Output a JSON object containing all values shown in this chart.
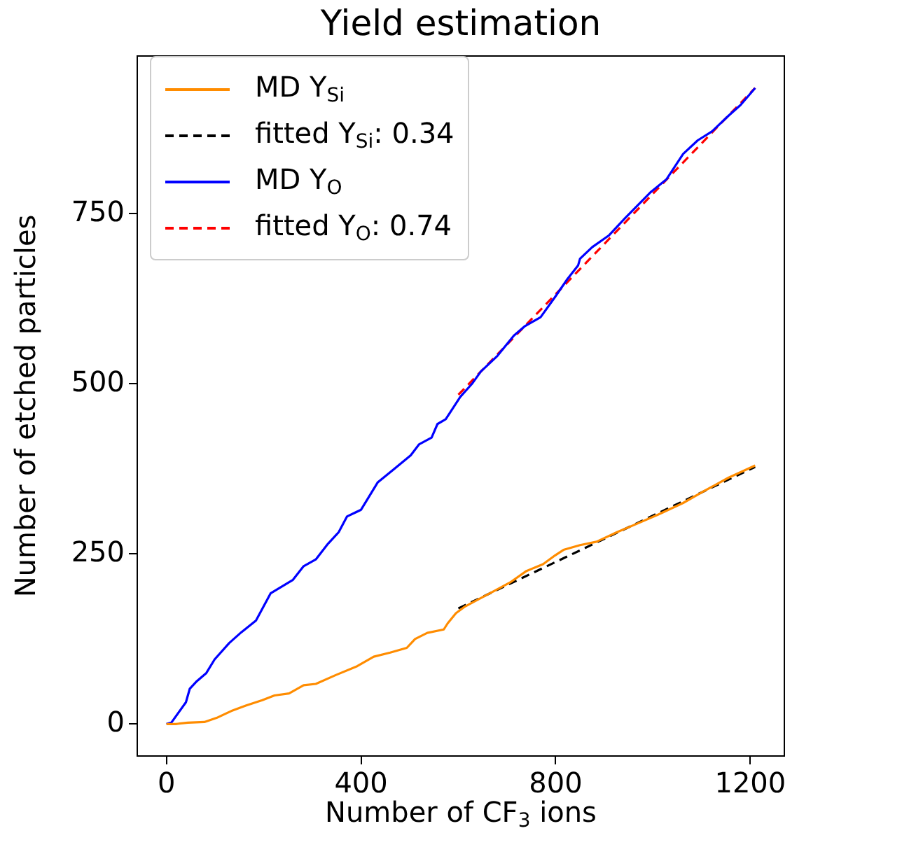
{
  "chart_data": {
    "type": "line",
    "title": "Yield estimation",
    "xlabel": "Number of CF$_{3}$ ions",
    "ylabel": "Number of etched particles",
    "xlim": [
      -60,
      1270
    ],
    "ylim": [
      -47,
      982
    ],
    "xticks": [
      0,
      400,
      800,
      1200
    ],
    "yticks": [
      0,
      250,
      500,
      750
    ],
    "legend": "top left",
    "series": [
      {
        "name": "MD Y$_{Si}$",
        "color": "#ff8c00",
        "line_style": "solid",
        "x": [
          0,
          19,
          44,
          78,
          103,
          133,
          163,
          197,
          222,
          252,
          282,
          307,
          348,
          392,
          426,
          460,
          494,
          511,
          536,
          570,
          578,
          595,
          612,
          638,
          672,
          706,
          740,
          774,
          799,
          816,
          850,
          884,
          926,
          969,
          1011,
          1062,
          1104,
          1155,
          1210
        ],
        "values": [
          0,
          0,
          2,
          3,
          9,
          19,
          27,
          35,
          42,
          45,
          57,
          59,
          72,
          85,
          99,
          105,
          112,
          125,
          134,
          139,
          148,
          163,
          172,
          182,
          195,
          208,
          225,
          235,
          248,
          256,
          263,
          268,
          282,
          295,
          308,
          325,
          342,
          362,
          380
        ]
      },
      {
        "name": "fitted Y$_{Si}$: 0.34",
        "color": "#000000",
        "line_style": "dashed",
        "x": [
          600,
          1210
        ],
        "values": [
          170,
          378
        ]
      },
      {
        "name": "MD Y$_{O}$",
        "color": "#0000ff",
        "line_style": "solid",
        "x": [
          0,
          10,
          27,
          40,
          48,
          61,
          82,
          99,
          129,
          154,
          184,
          214,
          260,
          282,
          307,
          332,
          354,
          371,
          400,
          434,
          468,
          502,
          519,
          545,
          557,
          574,
          604,
          629,
          646,
          680,
          714,
          737,
          769,
          799,
          824,
          846,
          850,
          875,
          909,
          943,
          994,
          1028,
          1062,
          1092,
          1121,
          1155,
          1180,
          1210
        ],
        "values": [
          0,
          2,
          19,
          32,
          52,
          62,
          75,
          95,
          119,
          135,
          152,
          192,
          212,
          232,
          242,
          265,
          282,
          305,
          315,
          355,
          375,
          395,
          411,
          421,
          441,
          448,
          481,
          501,
          518,
          541,
          571,
          585,
          598,
          628,
          654,
          674,
          684,
          701,
          718,
          744,
          781,
          801,
          838,
          858,
          871,
          894,
          910,
          935
        ]
      },
      {
        "name": "fitted Y$_{O}$: 0.74",
        "color": "#ff0000",
        "line_style": "dashed",
        "x": [
          600,
          1210
        ],
        "values": [
          484,
          935
        ]
      }
    ]
  }
}
